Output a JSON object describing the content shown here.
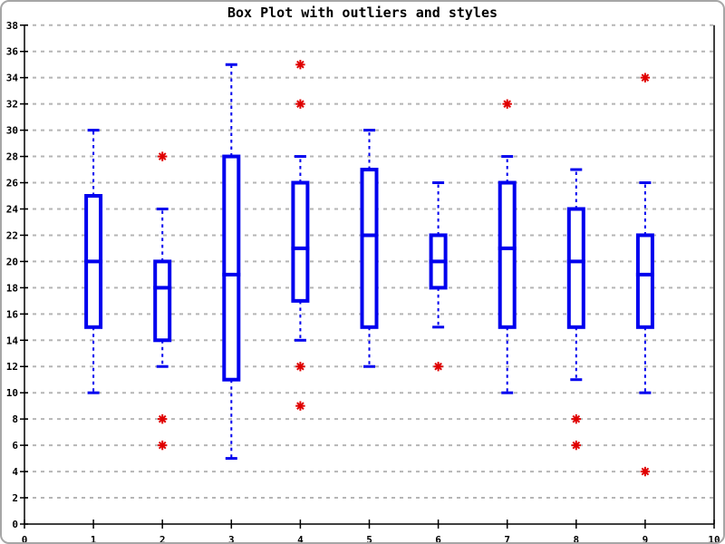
{
  "chart_data": {
    "type": "boxplot",
    "title": "Box Plot with outliers and styles",
    "xlim": [
      0,
      10
    ],
    "ylim": [
      0,
      38
    ],
    "x_ticks": [
      0,
      1,
      2,
      3,
      4,
      5,
      6,
      7,
      8,
      9,
      10
    ],
    "y_ticks": [
      0,
      2,
      4,
      6,
      8,
      10,
      12,
      14,
      16,
      18,
      20,
      22,
      24,
      26,
      28,
      30,
      32,
      34,
      36,
      38
    ],
    "grid": "horizontal-dashed",
    "legend": "none",
    "colors": {
      "box": "#0000ee",
      "outlier": "#e00000",
      "grid": "#b5b5b5",
      "axis": "#000000",
      "background": "#ffffff",
      "frame": "#a6a6a6"
    },
    "series": [
      {
        "x": 1,
        "whisker_low": 10,
        "q1": 15,
        "median": 20,
        "q3": 25,
        "whisker_high": 30,
        "outliers": []
      },
      {
        "x": 2,
        "whisker_low": 12,
        "q1": 14,
        "median": 18,
        "q3": 20,
        "whisker_high": 24,
        "outliers": [
          28,
          8,
          6
        ]
      },
      {
        "x": 3,
        "whisker_low": 5,
        "q1": 11,
        "median": 19,
        "q3": 28,
        "whisker_high": 35,
        "outliers": []
      },
      {
        "x": 4,
        "whisker_low": 14,
        "q1": 17,
        "median": 21,
        "q3": 26,
        "whisker_high": 28,
        "outliers": [
          35,
          32,
          12,
          9
        ]
      },
      {
        "x": 5,
        "whisker_low": 12,
        "q1": 15,
        "median": 22,
        "q3": 27,
        "whisker_high": 30,
        "outliers": []
      },
      {
        "x": 6,
        "whisker_low": 15,
        "q1": 18,
        "median": 20,
        "q3": 22,
        "whisker_high": 26,
        "outliers": [
          12
        ]
      },
      {
        "x": 7,
        "whisker_low": 10,
        "q1": 15,
        "median": 21,
        "q3": 26,
        "whisker_high": 28,
        "outliers": [
          32
        ]
      },
      {
        "x": 8,
        "whisker_low": 11,
        "q1": 15,
        "median": 20,
        "q3": 24,
        "whisker_high": 27,
        "outliers": [
          8,
          6
        ]
      },
      {
        "x": 9,
        "whisker_low": 10,
        "q1": 15,
        "median": 19,
        "q3": 22,
        "whisker_high": 26,
        "outliers": [
          34,
          4
        ]
      }
    ]
  }
}
